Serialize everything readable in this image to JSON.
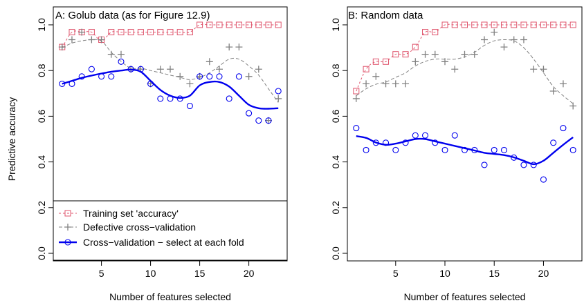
{
  "chart_data": [
    {
      "type": "scatter",
      "title": "A: Golub data (as for Figure 12.9)",
      "xlabel": "Number of features selected",
      "ylabel": "Predictive accuracy",
      "xlim": [
        0.1,
        23.9
      ],
      "ylim": [
        0,
        1
      ],
      "x_ticks": [
        5,
        10,
        15,
        20
      ],
      "y_ticks": [
        0.0,
        0.2,
        0.4,
        0.6,
        0.8,
        1.0
      ],
      "x_tick_labels": [
        "5",
        "10",
        "15",
        "20"
      ],
      "y_tick_labels": [
        "0.0",
        "0.2",
        "0.4",
        "0.6",
        "0.8",
        "1.0"
      ],
      "legend_position": "bottom",
      "legend": [
        "Training set 'accuracy'",
        "Defective cross−validation",
        "Cross−validation − select at each fold"
      ],
      "series": [
        {
          "name": "Training set 'accuracy'",
          "marker": "square",
          "color": "#df536b",
          "x": [
            1,
            2,
            3,
            4,
            5,
            6,
            7,
            8,
            9,
            10,
            11,
            12,
            13,
            14,
            15,
            16,
            17,
            18,
            19,
            20,
            21,
            22,
            23
          ],
          "values": [
            0.903,
            0.968,
            0.968,
            0.968,
            0.935,
            0.968,
            0.968,
            0.968,
            0.968,
            0.968,
            0.968,
            0.968,
            0.968,
            0.968,
            1.0,
            1.0,
            1.0,
            1.0,
            1.0,
            1.0,
            1.0,
            1.0,
            1.0
          ],
          "smooth": [
            0.9,
            0.968,
            0.968,
            0.968,
            0.93,
            0.968,
            0.968,
            0.968,
            0.968,
            0.968,
            0.968,
            0.968,
            0.968,
            0.968,
            1.0,
            1.0,
            1.0,
            1.0,
            1.0,
            1.0,
            1.0,
            1.0,
            1.0
          ]
        },
        {
          "name": "Defective cross−validation",
          "marker": "plus",
          "color": "#808080",
          "x": [
            1,
            2,
            3,
            4,
            5,
            6,
            7,
            8,
            9,
            10,
            11,
            12,
            13,
            14,
            15,
            16,
            17,
            18,
            19,
            20,
            21,
            22,
            23
          ],
          "values": [
            0.903,
            0.935,
            0.968,
            0.935,
            0.935,
            0.871,
            0.871,
            0.806,
            0.806,
            0.742,
            0.806,
            0.806,
            0.774,
            0.742,
            0.774,
            0.839,
            0.806,
            0.903,
            0.903,
            0.774,
            0.806,
            0.581,
            0.677
          ],
          "smooth": [
            0.9,
            0.92,
            0.93,
            0.935,
            0.93,
            0.88,
            0.84,
            0.81,
            0.81,
            0.8,
            0.79,
            0.78,
            0.77,
            0.76,
            0.77,
            0.79,
            0.82,
            0.85,
            0.85,
            0.82,
            0.78,
            0.72,
            0.66
          ]
        },
        {
          "name": "Cross−validation − select at each fold",
          "marker": "circle",
          "color": "#0000ee",
          "x": [
            1,
            2,
            3,
            4,
            5,
            6,
            7,
            8,
            9,
            10,
            11,
            12,
            13,
            14,
            15,
            16,
            17,
            18,
            19,
            20,
            21,
            22,
            23
          ],
          "values": [
            0.742,
            0.742,
            0.774,
            0.806,
            0.774,
            0.774,
            0.839,
            0.806,
            0.806,
            0.742,
            0.677,
            0.677,
            0.677,
            0.645,
            0.774,
            0.774,
            0.774,
            0.677,
            0.774,
            0.613,
            0.581,
            0.581,
            0.71
          ],
          "smooth": [
            0.742,
            0.755,
            0.768,
            0.778,
            0.787,
            0.795,
            0.8,
            0.804,
            0.795,
            0.755,
            0.715,
            0.69,
            0.68,
            0.69,
            0.735,
            0.75,
            0.75,
            0.73,
            0.69,
            0.65,
            0.635,
            0.633,
            0.635
          ]
        }
      ]
    },
    {
      "type": "scatter",
      "title": "B: Random data",
      "xlabel": "Number of features selected",
      "ylabel": "",
      "xlim": [
        0.1,
        23.9
      ],
      "ylim": [
        0,
        1
      ],
      "x_ticks": [
        5,
        10,
        15,
        20
      ],
      "y_ticks": [
        0.0,
        0.2,
        0.4,
        0.6,
        0.8,
        1.0
      ],
      "x_tick_labels": [
        "5",
        "10",
        "15",
        "20"
      ],
      "y_tick_labels": [
        "0.0",
        "0.2",
        "0.4",
        "0.6",
        "0.8",
        "1.0"
      ],
      "series": [
        {
          "name": "Training set 'accuracy'",
          "marker": "square",
          "color": "#df536b",
          "x": [
            1,
            2,
            3,
            4,
            5,
            6,
            7,
            8,
            9,
            10,
            11,
            12,
            13,
            14,
            15,
            16,
            17,
            18,
            19,
            20,
            21,
            22,
            23
          ],
          "values": [
            0.71,
            0.806,
            0.839,
            0.839,
            0.871,
            0.871,
            0.903,
            0.968,
            0.968,
            1.0,
            1.0,
            1.0,
            1.0,
            1.0,
            1.0,
            1.0,
            1.0,
            1.0,
            1.0,
            1.0,
            1.0,
            1.0,
            1.0
          ],
          "smooth": [
            0.71,
            0.806,
            0.839,
            0.839,
            0.871,
            0.871,
            0.903,
            0.968,
            0.968,
            1.0,
            1.0,
            1.0,
            1.0,
            1.0,
            1.0,
            1.0,
            1.0,
            1.0,
            1.0,
            1.0,
            1.0,
            1.0,
            1.0
          ]
        },
        {
          "name": "Defective cross−validation",
          "marker": "plus",
          "color": "#808080",
          "x": [
            1,
            2,
            3,
            4,
            5,
            6,
            7,
            8,
            9,
            10,
            11,
            12,
            13,
            14,
            15,
            16,
            17,
            18,
            19,
            20,
            21,
            22,
            23
          ],
          "values": [
            0.677,
            0.742,
            0.774,
            0.742,
            0.742,
            0.742,
            0.839,
            0.871,
            0.871,
            0.839,
            0.806,
            0.871,
            0.871,
            0.935,
            0.968,
            0.903,
            0.935,
            0.935,
            0.806,
            0.806,
            0.71,
            0.742,
            0.645
          ],
          "smooth": [
            0.69,
            0.72,
            0.74,
            0.75,
            0.77,
            0.79,
            0.82,
            0.84,
            0.85,
            0.85,
            0.85,
            0.86,
            0.88,
            0.91,
            0.93,
            0.935,
            0.93,
            0.9,
            0.85,
            0.79,
            0.73,
            0.69,
            0.655
          ]
        },
        {
          "name": "Cross−validation − select at each fold",
          "marker": "circle",
          "color": "#0000ee",
          "x": [
            1,
            2,
            3,
            4,
            5,
            6,
            7,
            8,
            9,
            10,
            11,
            12,
            13,
            14,
            15,
            16,
            17,
            18,
            19,
            20,
            21,
            22,
            23
          ],
          "values": [
            0.548,
            0.452,
            0.484,
            0.484,
            0.452,
            0.484,
            0.516,
            0.516,
            0.484,
            0.452,
            0.516,
            0.452,
            0.452,
            0.387,
            0.452,
            0.452,
            0.419,
            0.387,
            0.387,
            0.323,
            0.484,
            0.548,
            0.452
          ],
          "smooth": [
            0.513,
            0.505,
            0.485,
            0.475,
            0.48,
            0.49,
            0.5,
            0.5,
            0.49,
            0.48,
            0.47,
            0.46,
            0.45,
            0.44,
            0.435,
            0.43,
            0.42,
            0.405,
            0.39,
            0.405,
            0.44,
            0.475,
            0.508
          ]
        }
      ]
    }
  ]
}
